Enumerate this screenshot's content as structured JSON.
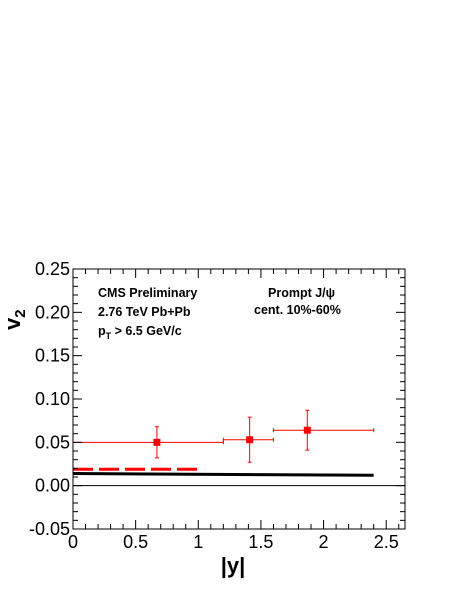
{
  "chart_data": {
    "type": "scatter",
    "xlabel": "|y|",
    "ylabel": "v",
    "ylabel_subscript": "2",
    "xlim": [
      0,
      2.65
    ],
    "ylim": [
      -0.05,
      0.25
    ],
    "x_ticks": [
      0,
      0.5,
      1,
      1.5,
      2,
      2.5
    ],
    "x_tick_labels": [
      "0",
      "0.5",
      "1",
      "1.5",
      "2",
      "2.5"
    ],
    "y_ticks": [
      -0.05,
      0.0,
      0.05,
      0.1,
      0.15,
      0.2,
      0.25
    ],
    "y_tick_labels": [
      "-0.05",
      "0.00",
      "0.05",
      "0.10",
      "0.15",
      "0.20",
      "0.25"
    ],
    "grid": false,
    "annotations": {
      "experiment": "CMS Preliminary",
      "system": "2.76 TeV Pb+Pb",
      "pt_cut_prefix": "p",
      "pt_cut_sub": "T",
      "pt_cut_suffix": " > 6.5 GeV/c",
      "particle": "Prompt J/ψ",
      "centrality": "cent. 10%-60%"
    },
    "series": [
      {
        "kind": "points",
        "color": "#ff0000",
        "marker": "square",
        "points": [
          {
            "x": 0.67,
            "y": 0.05,
            "xlo": 0.0,
            "xhi": 1.2,
            "ylo": 0.032,
            "yhi": 0.068
          },
          {
            "x": 1.41,
            "y": 0.053,
            "xlo": 1.2,
            "xhi": 1.6,
            "ylo": 0.027,
            "yhi": 0.079
          },
          {
            "x": 1.87,
            "y": 0.064,
            "xlo": 1.6,
            "xhi": 2.4,
            "ylo": 0.041,
            "yhi": 0.087
          }
        ]
      },
      {
        "kind": "dashed-line",
        "color": "#ff0000",
        "points": [
          [
            0.0,
            0.019
          ],
          [
            1.0,
            0.019
          ]
        ]
      },
      {
        "kind": "solid-line",
        "color": "#000000",
        "points": [
          [
            0.0,
            0.014
          ],
          [
            2.4,
            0.012
          ]
        ]
      },
      {
        "kind": "zero-line",
        "color": "#000000",
        "points": [
          [
            0.0,
            0.0
          ],
          [
            2.65,
            0.0
          ]
        ]
      }
    ]
  }
}
